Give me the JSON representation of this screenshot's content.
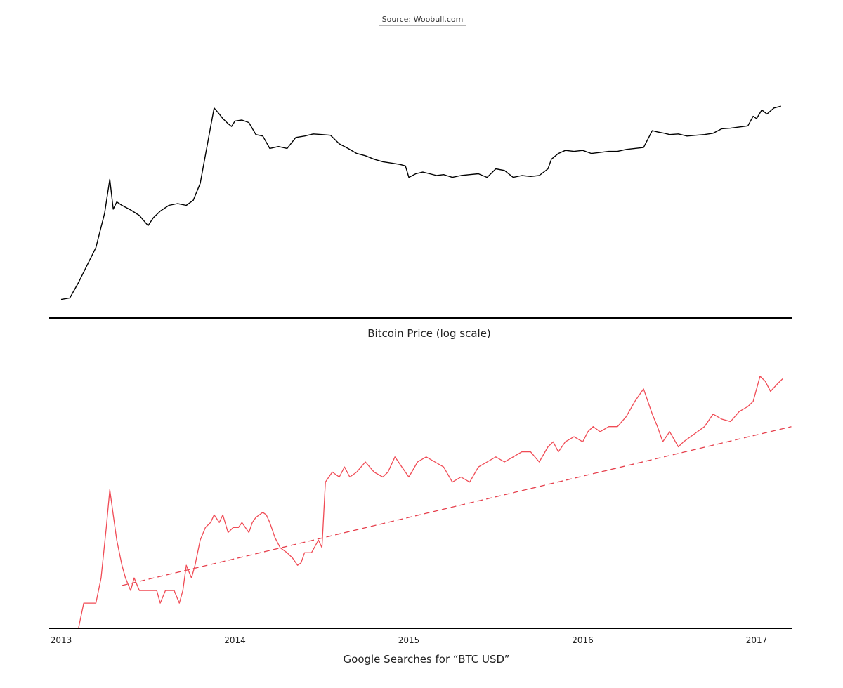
{
  "source_label": "Source: Woobull.com",
  "chart_data": [
    {
      "type": "line",
      "title": "Bitcoin Price (log scale)",
      "yscale": "log",
      "grid": false,
      "color": "#000000",
      "x_range": [
        2013.0,
        2017.2
      ],
      "ylim": [
        10,
        3000
      ],
      "series": [
        {
          "x": [
            2013.0,
            2013.05,
            2013.1,
            2013.15,
            2013.2,
            2013.25,
            2013.28,
            2013.3,
            2013.32,
            2013.35,
            2013.4,
            2013.45,
            2013.5,
            2013.53,
            2013.57,
            2013.62,
            2013.67,
            2013.72,
            2013.76,
            2013.8,
            2013.85,
            2013.88,
            2013.91,
            2013.93,
            2013.96,
            2013.98,
            2014.0,
            2014.04,
            2014.08,
            2014.12,
            2014.16,
            2014.2,
            2014.25,
            2014.3,
            2014.35,
            2014.4,
            2014.45,
            2014.5,
            2014.55,
            2014.6,
            2014.65,
            2014.7,
            2014.75,
            2014.8,
            2014.85,
            2014.9,
            2014.95,
            2014.98,
            2015.0,
            2015.04,
            2015.08,
            2015.12,
            2015.16,
            2015.2,
            2015.25,
            2015.3,
            2015.35,
            2015.4,
            2015.45,
            2015.5,
            2015.55,
            2015.6,
            2015.65,
            2015.7,
            2015.75,
            2015.8,
            2015.82,
            2015.86,
            2015.9,
            2015.95,
            2016.0,
            2016.05,
            2016.1,
            2016.15,
            2016.2,
            2016.25,
            2016.3,
            2016.35,
            2016.4,
            2016.43,
            2016.47,
            2016.5,
            2016.55,
            2016.6,
            2016.65,
            2016.7,
            2016.75,
            2016.8,
            2016.85,
            2016.9,
            2016.95,
            2016.98,
            2017.0,
            2017.03,
            2017.06,
            2017.1,
            2017.14
          ],
          "values": [
            13.5,
            14,
            20,
            30,
            45,
            100,
            220,
            110,
            130,
            120,
            108,
            95,
            75,
            90,
            105,
            120,
            125,
            120,
            135,
            200,
            600,
            1150,
            1000,
            900,
            800,
            750,
            850,
            870,
            820,
            620,
            600,
            450,
            470,
            450,
            580,
            600,
            630,
            620,
            610,
            500,
            450,
            400,
            380,
            350,
            330,
            320,
            310,
            300,
            230,
            250,
            260,
            250,
            240,
            245,
            230,
            240,
            245,
            250,
            230,
            280,
            270,
            230,
            240,
            235,
            240,
            280,
            350,
            400,
            430,
            420,
            430,
            400,
            410,
            420,
            420,
            440,
            450,
            460,
            680,
            660,
            640,
            620,
            630,
            600,
            610,
            620,
            640,
            710,
            720,
            740,
            760,
            950,
            900,
            1100,
            1000,
            1150,
            1200
          ]
        }
      ]
    },
    {
      "type": "line",
      "title": "Google Searches for “BTC USD”",
      "grid": false,
      "color": "#f04b55",
      "x_range": [
        2013.0,
        2017.2
      ],
      "xticks": [
        "2013",
        "2014",
        "2015",
        "2016",
        "2017"
      ],
      "ylim": [
        0,
        110
      ],
      "series": [
        {
          "x": [
            2013.1,
            2013.13,
            2013.2,
            2013.23,
            2013.26,
            2013.28,
            2013.3,
            2013.32,
            2013.35,
            2013.37,
            2013.4,
            2013.42,
            2013.45,
            2013.5,
            2013.55,
            2013.57,
            2013.6,
            2013.65,
            2013.68,
            2013.7,
            2013.72,
            2013.75,
            2013.77,
            2013.8,
            2013.83,
            2013.86,
            2013.88,
            2013.91,
            2013.93,
            2013.96,
            2013.99,
            2014.02,
            2014.04,
            2014.06,
            2014.08,
            2014.1,
            2014.12,
            2014.14,
            2014.16,
            2014.18,
            2014.2,
            2014.23,
            2014.26,
            2014.3,
            2014.33,
            2014.36,
            2014.38,
            2014.4,
            2014.44,
            2014.48,
            2014.5,
            2014.52,
            2014.54,
            2014.56,
            2014.6,
            2014.63,
            2014.66,
            2014.7,
            2014.75,
            2014.8,
            2014.85,
            2014.88,
            2014.92,
            2014.96,
            2015.0,
            2015.05,
            2015.1,
            2015.15,
            2015.2,
            2015.25,
            2015.3,
            2015.35,
            2015.4,
            2015.45,
            2015.5,
            2015.55,
            2015.6,
            2015.65,
            2015.7,
            2015.75,
            2015.8,
            2015.83,
            2015.86,
            2015.9,
            2015.95,
            2016.0,
            2016.03,
            2016.06,
            2016.1,
            2016.15,
            2016.2,
            2016.25,
            2016.3,
            2016.35,
            2016.4,
            2016.43,
            2016.46,
            2016.5,
            2016.55,
            2016.58,
            2016.62,
            2016.66,
            2016.7,
            2016.75,
            2016.8,
            2016.85,
            2016.9,
            2016.95,
            2016.98,
            2017.0,
            2017.02,
            2017.05,
            2017.08,
            2017.12,
            2017.15
          ],
          "values": [
            0,
            10,
            10,
            20,
            40,
            55,
            45,
            35,
            25,
            20,
            15,
            20,
            15,
            15,
            15,
            10,
            15,
            15,
            10,
            15,
            25,
            20,
            25,
            35,
            40,
            42,
            45,
            42,
            45,
            38,
            40,
            40,
            42,
            40,
            38,
            42,
            44,
            45,
            46,
            45,
            42,
            36,
            32,
            30,
            28,
            25,
            26,
            30,
            30,
            35,
            32,
            58,
            60,
            62,
            60,
            64,
            60,
            62,
            66,
            62,
            60,
            62,
            68,
            64,
            60,
            66,
            68,
            66,
            64,
            58,
            60,
            58,
            64,
            66,
            68,
            66,
            68,
            70,
            70,
            66,
            72,
            74,
            70,
            74,
            76,
            74,
            78,
            80,
            78,
            80,
            80,
            84,
            90,
            95,
            85,
            80,
            74,
            78,
            72,
            74,
            76,
            78,
            80,
            85,
            83,
            82,
            86,
            88,
            90,
            95,
            100,
            98,
            94,
            97,
            99
          ]
        },
        {
          "name": "",
          "style": "dashed",
          "x": [
            2013.35,
            2017.2
          ],
          "values": [
            17,
            80
          ]
        }
      ]
    }
  ]
}
